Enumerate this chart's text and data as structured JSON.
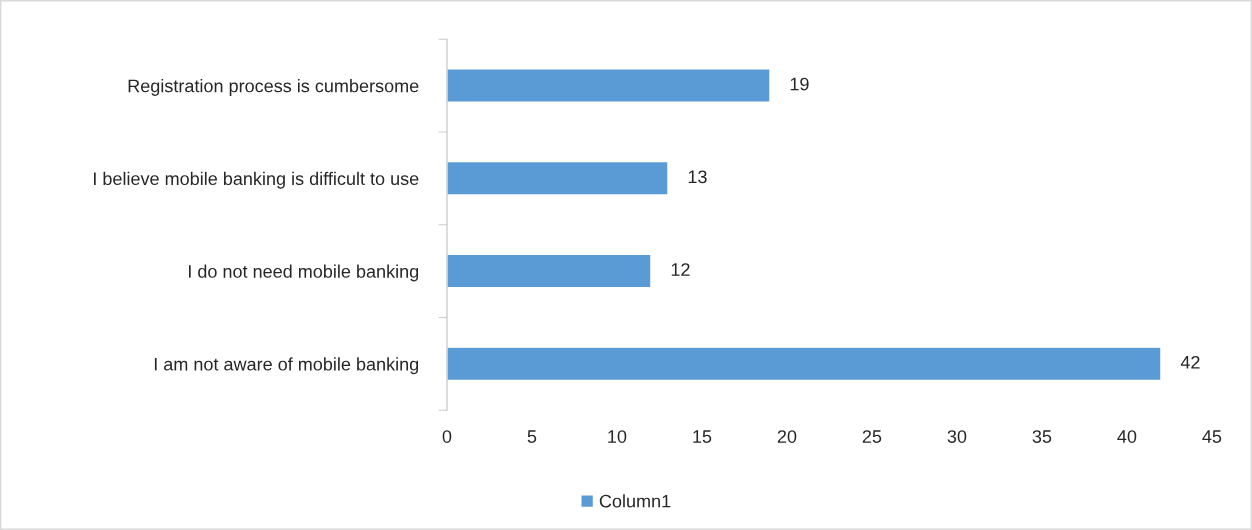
{
  "chart_data": {
    "type": "bar",
    "orientation": "horizontal",
    "categories": [
      "Registration process is cumbersome",
      "I believe mobile banking is difficult to use",
      "I do not need mobile banking",
      "I am not aware of mobile banking"
    ],
    "series": [
      {
        "name": "Column1",
        "color": "#5b9bd5",
        "values": [
          19,
          13,
          12,
          42
        ]
      }
    ],
    "xlim": [
      0,
      45
    ],
    "xticks": [
      0,
      5,
      10,
      15,
      20,
      25,
      30,
      35,
      40,
      45
    ],
    "data_labels": true,
    "grid": false,
    "legend": "bottom"
  }
}
